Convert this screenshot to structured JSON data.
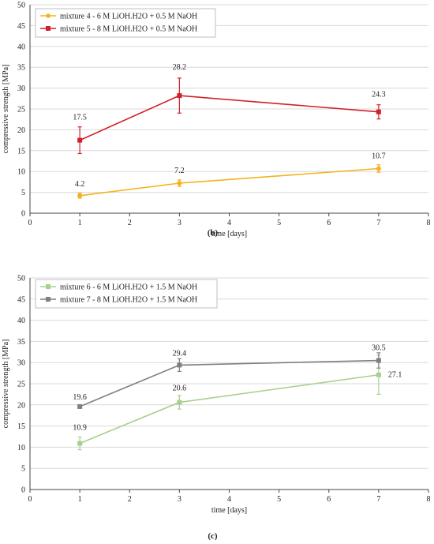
{
  "chart_data": [
    {
      "type": "line",
      "x": [
        1,
        3,
        7
      ],
      "series": [
        {
          "name": "mixture 4 - 6 M LiOH.H2O + 0.5 M NaOH",
          "color": "#f5b21e",
          "marker": "circle",
          "values": [
            4.2,
            7.2,
            10.7
          ],
          "errors": [
            0.6,
            0.8,
            0.9
          ],
          "labels": [
            "4.2",
            "7.2",
            "10.7"
          ]
        },
        {
          "name": "mixture 5 - 8 M LiOH.H2O + 0.5 M NaOH",
          "color": "#d0202a",
          "marker": "square",
          "values": [
            17.5,
            28.2,
            24.3
          ],
          "errors": [
            3.2,
            4.2,
            1.7
          ],
          "labels": [
            "17.5",
            "28.2",
            "24.3"
          ]
        }
      ],
      "xlabel": "time [days]",
      "ylabel": "compressive strength [MPa]",
      "xlim": [
        0,
        8
      ],
      "ylim": [
        0,
        50
      ],
      "xticks": [
        "0",
        "1",
        "2",
        "3",
        "4",
        "5",
        "6",
        "7",
        "8"
      ],
      "yticks": [
        "0",
        "5",
        "10",
        "15",
        "20",
        "25",
        "30",
        "35",
        "40",
        "45",
        "50"
      ],
      "grid": true,
      "legend": "top-left",
      "caption": "(b)"
    },
    {
      "type": "line",
      "x": [
        1,
        3,
        7
      ],
      "series": [
        {
          "name": "mixture 6 - 6 M LiOH.H2O + 1.5 M NaOH",
          "color": "#a8d08d",
          "marker": "square",
          "values": [
            10.9,
            20.6,
            27.1
          ],
          "errors": [
            1.5,
            1.6,
            4.6
          ],
          "labels": [
            "10.9",
            "20.6",
            "27.1"
          ]
        },
        {
          "name": "mixture 7 - 8 M LiOH.H2O + 1.5 M NaOH",
          "color": "#7f7f7f",
          "marker": "square",
          "values": [
            19.6,
            29.4,
            30.5
          ],
          "errors": [
            0.3,
            1.5,
            1.8
          ],
          "labels": [
            "19.6",
            "29.4",
            "30.5"
          ]
        }
      ],
      "xlabel": "time [days]",
      "ylabel": "compressive strength [MPa]",
      "xlim": [
        0,
        8
      ],
      "ylim": [
        0,
        50
      ],
      "xticks": [
        "0",
        "1",
        "2",
        "3",
        "4",
        "5",
        "6",
        "7",
        "8"
      ],
      "yticks": [
        "0",
        "5",
        "10",
        "15",
        "20",
        "25",
        "30",
        "35",
        "40",
        "45",
        "50"
      ],
      "grid": true,
      "legend": "top-left",
      "caption": "(c)"
    }
  ]
}
